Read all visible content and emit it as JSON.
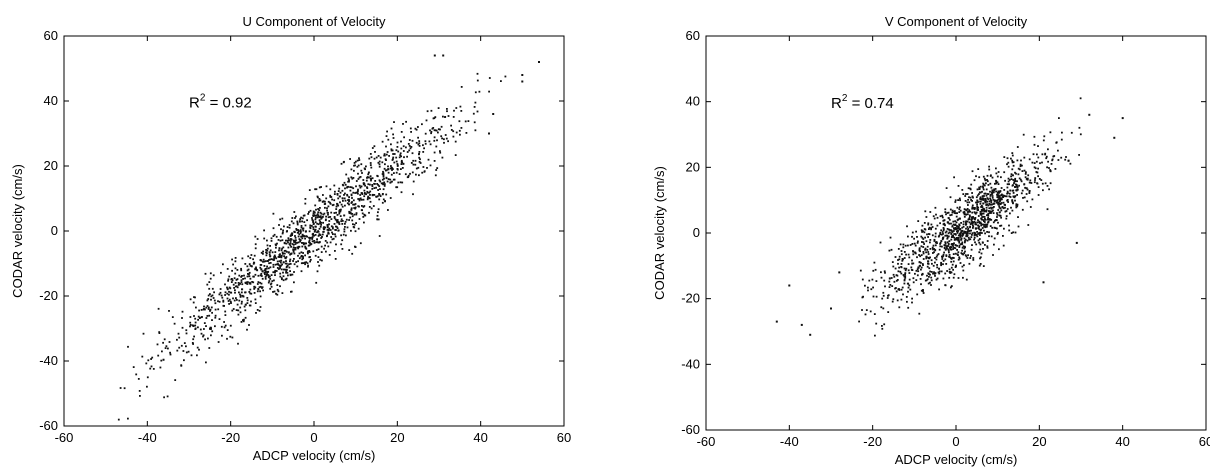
{
  "chart_data": [
    {
      "type": "scatter",
      "title": "U Component of Velocity",
      "xlabel": "ADCP velocity (cm/s)",
      "ylabel": "CODAR velocity (cm/s)",
      "xlim": [
        -60,
        60
      ],
      "ylim": [
        -60,
        60
      ],
      "xticks": [
        "-60",
        "-40",
        "-20",
        "0",
        "20",
        "40",
        "60"
      ],
      "yticks": [
        "-60",
        "-40",
        "-20",
        "0",
        "20",
        "40",
        "60"
      ],
      "annotation": {
        "label": "R",
        "sup": "2",
        "text": " = 0.92",
        "x": -30,
        "y": 38
      },
      "grid": false,
      "point_count": 1500,
      "trend": {
        "slope": 1.0,
        "intercept": 0,
        "x_mean": 0,
        "x_sd": 18,
        "x_range": [
          -47,
          46
        ],
        "y_noise_sd": 5.5
      },
      "outliers": [
        [
          50,
          48
        ],
        [
          50,
          46
        ],
        [
          54,
          52
        ],
        [
          29,
          54
        ],
        [
          31,
          54
        ],
        [
          43,
          36
        ],
        [
          42,
          30
        ]
      ]
    },
    {
      "type": "scatter",
      "title": "V Component of Velocity",
      "xlabel": "ADCP velocity (cm/s)",
      "ylabel": "CODAR velocity (cm/s)",
      "xlim": [
        -60,
        60
      ],
      "ylim": [
        -60,
        60
      ],
      "xticks": [
        "-60",
        "-40",
        "-20",
        "0",
        "20",
        "40",
        "60"
      ],
      "yticks": [
        "-60",
        "-40",
        "-20",
        "0",
        "20",
        "40",
        "60"
      ],
      "annotation": {
        "label": "R",
        "sup": "2",
        "text": " = 0.74",
        "x": -30,
        "y": 38
      },
      "grid": false,
      "point_count": 1300,
      "trend": {
        "slope": 0.95,
        "intercept": 0,
        "x_mean": 2,
        "x_sd": 10,
        "x_range": [
          -25,
          30
        ],
        "y_noise_sd": 5.8
      },
      "outliers": [
        [
          -43,
          -27
        ],
        [
          -37,
          -28
        ],
        [
          -35,
          -31
        ],
        [
          -40,
          -16
        ],
        [
          32,
          36
        ],
        [
          38,
          29
        ],
        [
          40,
          35
        ],
        [
          21,
          -15
        ],
        [
          29,
          -3
        ],
        [
          27,
          22
        ],
        [
          -28,
          -12
        ],
        [
          -30,
          -23
        ]
      ]
    }
  ]
}
